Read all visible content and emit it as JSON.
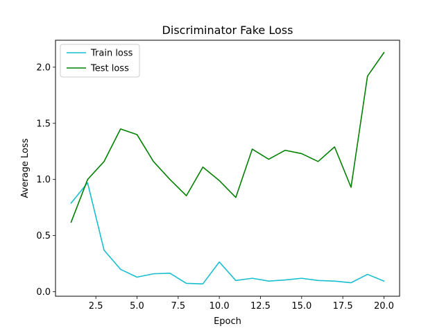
{
  "chart_data": {
    "type": "line",
    "title": "Discriminator Fake Loss",
    "xlabel": "Epoch",
    "ylabel": "Average Loss",
    "xlim": [
      0.05,
      20.95
    ],
    "ylim": [
      -0.04,
      2.24
    ],
    "xticks": [
      2.5,
      5.0,
      7.5,
      10.0,
      12.5,
      15.0,
      17.5,
      20.0
    ],
    "xtick_labels": [
      "2.5",
      "5.0",
      "7.5",
      "10.0",
      "12.5",
      "15.0",
      "17.5",
      "20.0"
    ],
    "yticks": [
      0.0,
      0.5,
      1.0,
      1.5,
      2.0
    ],
    "ytick_labels": [
      "0.0",
      "0.5",
      "1.0",
      "1.5",
      "2.0"
    ],
    "grid": false,
    "legend_position": "top-left",
    "x": [
      1,
      2,
      3,
      4,
      5,
      6,
      7,
      8,
      9,
      10,
      11,
      12,
      13,
      14,
      15,
      16,
      17,
      18,
      19,
      20
    ],
    "series": [
      {
        "name": "Train loss",
        "color": "#17becf",
        "values": [
          0.79,
          0.97,
          0.37,
          0.2,
          0.13,
          0.16,
          0.165,
          0.075,
          0.07,
          0.265,
          0.1,
          0.12,
          0.095,
          0.105,
          0.12,
          0.1,
          0.095,
          0.08,
          0.155,
          0.095
        ]
      },
      {
        "name": "Test loss",
        "color": "#008000",
        "values": [
          0.62,
          1.0,
          1.16,
          1.45,
          1.4,
          1.16,
          1.0,
          0.855,
          1.11,
          0.99,
          0.84,
          1.27,
          1.18,
          1.26,
          1.23,
          1.16,
          1.29,
          0.93,
          1.92,
          2.13
        ]
      }
    ]
  }
}
